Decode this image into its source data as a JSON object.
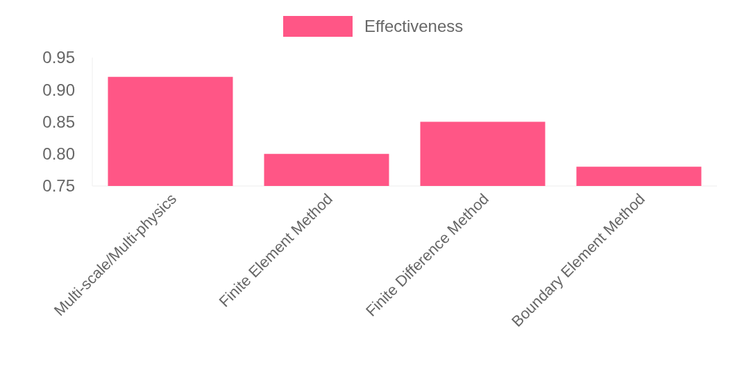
{
  "chart_data": {
    "type": "bar",
    "categories": [
      "Multi-scale/Multi-physics",
      "Finite Element Method",
      "Finite Difference Method",
      "Boundary Element Method"
    ],
    "series": [
      {
        "name": "Effectiveness",
        "color": "#ff5686",
        "values": [
          0.92,
          0.8,
          0.85,
          0.78
        ]
      }
    ],
    "ylim": [
      0.75,
      0.95
    ],
    "yticks": [
      {
        "value": 0.75,
        "label": "0.75"
      },
      {
        "value": 0.8,
        "label": "0.80"
      },
      {
        "value": 0.85,
        "label": "0.85"
      },
      {
        "value": 0.9,
        "label": "0.90"
      },
      {
        "value": 0.95,
        "label": "0.95"
      }
    ],
    "legend": "top"
  }
}
